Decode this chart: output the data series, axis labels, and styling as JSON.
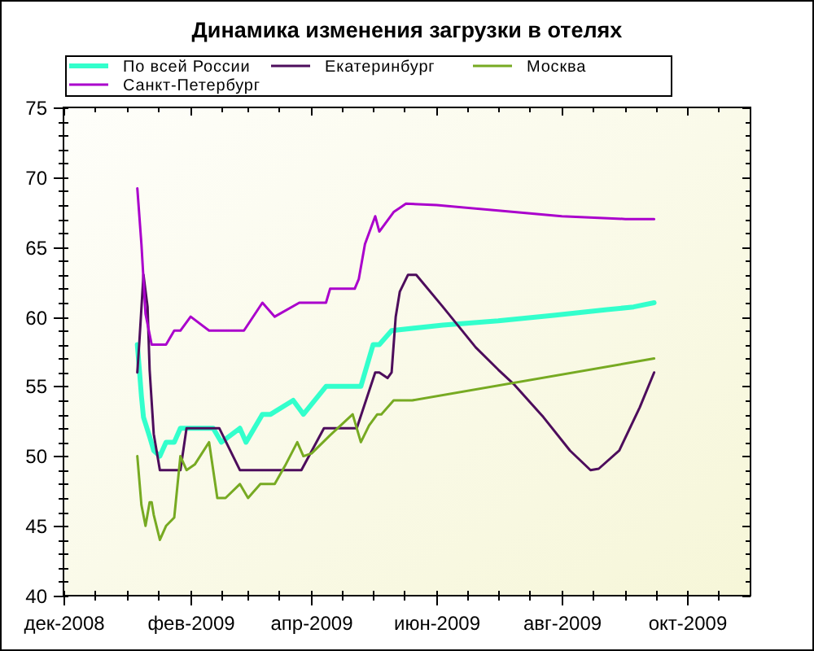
{
  "chart_data": {
    "type": "line",
    "title": "Динамика изменения загрузки в отелях",
    "legend": "top",
    "xlim": [
      "2008-12-01",
      "2009-11-01"
    ],
    "xticks": [
      {
        "value": "2008-12-01",
        "label": "дек-2008"
      },
      {
        "value": "2008-12-16",
        "label": null
      },
      {
        "value": "2009-01-01",
        "label": null
      },
      {
        "value": "2009-01-16",
        "label": null
      },
      {
        "value": "2009-02-01",
        "label": "фев-2009"
      },
      {
        "value": "2009-02-16",
        "label": null
      },
      {
        "value": "2009-03-01",
        "label": null
      },
      {
        "value": "2009-03-16",
        "label": null
      },
      {
        "value": "2009-04-01",
        "label": "апр-2009"
      },
      {
        "value": "2009-04-16",
        "label": null
      },
      {
        "value": "2009-05-01",
        "label": null
      },
      {
        "value": "2009-05-16",
        "label": null
      },
      {
        "value": "2009-06-01",
        "label": "июн-2009"
      },
      {
        "value": "2009-06-16",
        "label": null
      },
      {
        "value": "2009-07-01",
        "label": null
      },
      {
        "value": "2009-07-16",
        "label": null
      },
      {
        "value": "2009-08-01",
        "label": "авг-2009"
      },
      {
        "value": "2009-08-16",
        "label": null
      },
      {
        "value": "2009-09-01",
        "label": null
      },
      {
        "value": "2009-09-16",
        "label": null
      },
      {
        "value": "2009-10-01",
        "label": "окт-2009"
      },
      {
        "value": "2009-10-16",
        "label": null
      }
    ],
    "ylim": [
      40,
      75
    ],
    "yticks": [
      40,
      {
        "value": 41,
        "label": null
      },
      {
        "value": 42,
        "label": null
      },
      {
        "value": 43,
        "label": null
      },
      {
        "value": 44,
        "label": null
      },
      45,
      {
        "value": 46,
        "label": null
      },
      {
        "value": 47,
        "label": null
      },
      {
        "value": 48,
        "label": null
      },
      {
        "value": 49,
        "label": null
      },
      50,
      {
        "value": 51,
        "label": null
      },
      {
        "value": 52,
        "label": null
      },
      {
        "value": 53,
        "label": null
      },
      {
        "value": 54,
        "label": null
      },
      55,
      {
        "value": 56,
        "label": null
      },
      {
        "value": 57,
        "label": null
      },
      {
        "value": 58,
        "label": null
      },
      {
        "value": 59,
        "label": null
      },
      60,
      {
        "value": 61,
        "label": null
      },
      {
        "value": 62,
        "label": null
      },
      {
        "value": 63,
        "label": null
      },
      {
        "value": 64,
        "label": null
      },
      65,
      {
        "value": 66,
        "label": null
      },
      {
        "value": 67,
        "label": null
      },
      {
        "value": 68,
        "label": null
      },
      {
        "value": 69,
        "label": null
      },
      70,
      {
        "value": 71,
        "label": null
      },
      {
        "value": 72,
        "label": null
      },
      {
        "value": 73,
        "label": null
      },
      {
        "value": 74,
        "label": null
      },
      75
    ],
    "series": [
      {
        "name": "По всей России",
        "color": "#33ffcc",
        "x": [
          "2009-01-06",
          "2009-01-07",
          "2009-01-08",
          "2009-01-09",
          "2009-01-12",
          "2009-01-14",
          "2009-01-17",
          "2009-01-20",
          "2009-01-24",
          "2009-01-27",
          "2009-02-12",
          "2009-02-16",
          "2009-02-25",
          "2009-02-28",
          "2009-03-08",
          "2009-03-12",
          "2009-03-23",
          "2009-03-28",
          "2009-04-08",
          "2009-04-25",
          "2009-05-01",
          "2009-05-04",
          "2009-05-10",
          "2009-06-04",
          "2009-07-01",
          "2009-07-28",
          "2009-08-23",
          "2009-09-05",
          "2009-09-15"
        ],
        "values": [
          58,
          56.2,
          54.3,
          52.8,
          51.4,
          50.4,
          50,
          51,
          51,
          52,
          52,
          51,
          52,
          51,
          53,
          53,
          54,
          53,
          55,
          55,
          58,
          58,
          59,
          59.4,
          59.7,
          60.1,
          60.5,
          60.7,
          61
        ]
      },
      {
        "name": "Екатеринбург",
        "color": "#4d0d5c",
        "x": [
          "2009-01-06",
          "2009-01-07",
          "2009-01-09",
          "2009-01-11",
          "2009-01-12",
          "2009-01-14",
          "2009-01-17",
          "2009-01-27",
          "2009-01-30",
          "2009-02-15",
          "2009-02-25",
          "2009-03-27",
          "2009-04-07",
          "2009-04-23",
          "2009-05-02",
          "2009-05-04",
          "2009-05-08",
          "2009-05-10",
          "2009-05-12",
          "2009-05-14",
          "2009-05-18",
          "2009-05-22",
          "2009-06-04",
          "2009-06-20",
          "2009-07-01",
          "2009-07-09",
          "2009-07-23",
          "2009-08-05",
          "2009-08-15",
          "2009-08-19",
          "2009-08-29",
          "2009-09-08",
          "2009-09-15"
        ],
        "values": [
          56,
          58.2,
          63,
          60.7,
          56.2,
          51.6,
          49,
          49,
          52,
          52,
          49,
          49,
          52,
          52,
          56,
          56,
          55.6,
          56,
          60,
          61.8,
          63,
          63,
          60.7,
          57.8,
          56.2,
          55.1,
          52.8,
          50.4,
          49,
          49.1,
          50.4,
          53.5,
          56
        ]
      },
      {
        "name": "Москва",
        "color": "#77aa22",
        "x": [
          "2009-01-06",
          "2009-01-08",
          "2009-01-10",
          "2009-01-12",
          "2009-01-13",
          "2009-01-14",
          "2009-01-17",
          "2009-01-20",
          "2009-01-24",
          "2009-01-27",
          "2009-01-30",
          "2009-02-03",
          "2009-02-10",
          "2009-02-14",
          "2009-02-18",
          "2009-02-25",
          "2009-03-01",
          "2009-03-07",
          "2009-03-14",
          "2009-03-19",
          "2009-03-25",
          "2009-03-28",
          "2009-04-01",
          "2009-04-10",
          "2009-04-21",
          "2009-04-25",
          "2009-04-29",
          "2009-05-03",
          "2009-05-05",
          "2009-05-11",
          "2009-05-20",
          "2009-09-15"
        ],
        "values": [
          50,
          46.5,
          45,
          46.7,
          46.7,
          45.8,
          44,
          45,
          45.6,
          50,
          49,
          49.4,
          51,
          47,
          47,
          48,
          47,
          48,
          48,
          49.3,
          51,
          50,
          50.2,
          51.5,
          53,
          51,
          52.2,
          53,
          53,
          54,
          54,
          57
        ]
      },
      {
        "name": "Санкт-Петербург",
        "color": "#aa00cc",
        "x": [
          "2009-01-06",
          "2009-01-08",
          "2009-01-10",
          "2009-01-13",
          "2009-01-20",
          "2009-01-24",
          "2009-01-27",
          "2009-02-01",
          "2009-02-10",
          "2009-02-27",
          "2009-03-08",
          "2009-03-14",
          "2009-03-26",
          "2009-04-08",
          "2009-04-10",
          "2009-04-22",
          "2009-04-24",
          "2009-04-27",
          "2009-05-02",
          "2009-05-04",
          "2009-05-11",
          "2009-05-17",
          "2009-06-01",
          "2009-07-01",
          "2009-08-01",
          "2009-09-01",
          "2009-09-15"
        ],
        "values": [
          69.2,
          65.2,
          60.2,
          58,
          58,
          59,
          59,
          60,
          59,
          59,
          61,
          60,
          61,
          61,
          62,
          62,
          62.7,
          65.2,
          67.2,
          66.1,
          67.5,
          68.1,
          68,
          67.6,
          67.2,
          67,
          67
        ]
      }
    ]
  }
}
